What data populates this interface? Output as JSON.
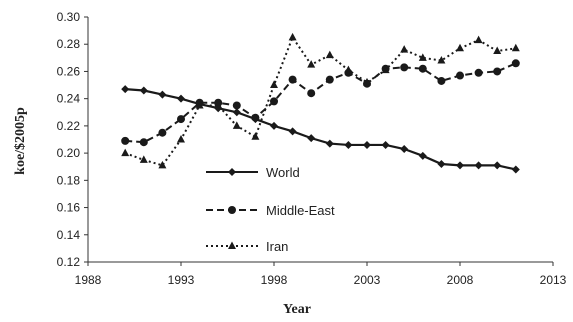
{
  "chart_data": {
    "type": "line",
    "title": "",
    "xlabel": "Year",
    "ylabel": "koe/$2005p",
    "xlim": [
      1988,
      2013
    ],
    "ylim": [
      0.12,
      0.3
    ],
    "x_ticks": [
      "1988",
      "1993",
      "1998",
      "2003",
      "2008",
      "2013"
    ],
    "y_ticks": [
      "0.12",
      "0.14",
      "0.16",
      "0.18",
      "0.20",
      "0.22",
      "0.24",
      "0.26",
      "0.28",
      "0.30"
    ],
    "grid": false,
    "legend_position": "center-left",
    "x": [
      1990,
      1991,
      1992,
      1993,
      1994,
      1995,
      1996,
      1997,
      1998,
      1999,
      2000,
      2001,
      2002,
      2003,
      2004,
      2005,
      2006,
      2007,
      2008,
      2009,
      2010,
      2011
    ],
    "series": [
      {
        "name": "World",
        "line_style": "solid",
        "marker": "diamond",
        "color": "#1a1a1a",
        "values": [
          0.247,
          0.246,
          0.243,
          0.24,
          0.236,
          0.233,
          0.23,
          0.225,
          0.22,
          0.216,
          0.211,
          0.207,
          0.206,
          0.206,
          0.206,
          0.203,
          0.198,
          0.192,
          0.191,
          0.191,
          0.191,
          0.188
        ]
      },
      {
        "name": "Middle-East",
        "line_style": "dashed",
        "marker": "circle",
        "color": "#1a1a1a",
        "values": [
          0.209,
          0.208,
          0.215,
          0.225,
          0.237,
          0.237,
          0.235,
          0.226,
          0.238,
          0.254,
          0.244,
          0.254,
          0.259,
          0.251,
          0.262,
          0.263,
          0.262,
          0.253,
          0.257,
          0.259,
          0.26,
          0.266
        ]
      },
      {
        "name": "Iran",
        "line_style": "dotted",
        "marker": "triangle",
        "color": "#1a1a1a",
        "values": [
          0.2,
          0.195,
          0.191,
          0.21,
          0.235,
          0.235,
          0.22,
          0.212,
          0.25,
          0.285,
          0.265,
          0.272,
          0.261,
          0.252,
          0.261,
          0.276,
          0.27,
          0.268,
          0.277,
          0.283,
          0.275,
          0.277
        ]
      }
    ]
  }
}
